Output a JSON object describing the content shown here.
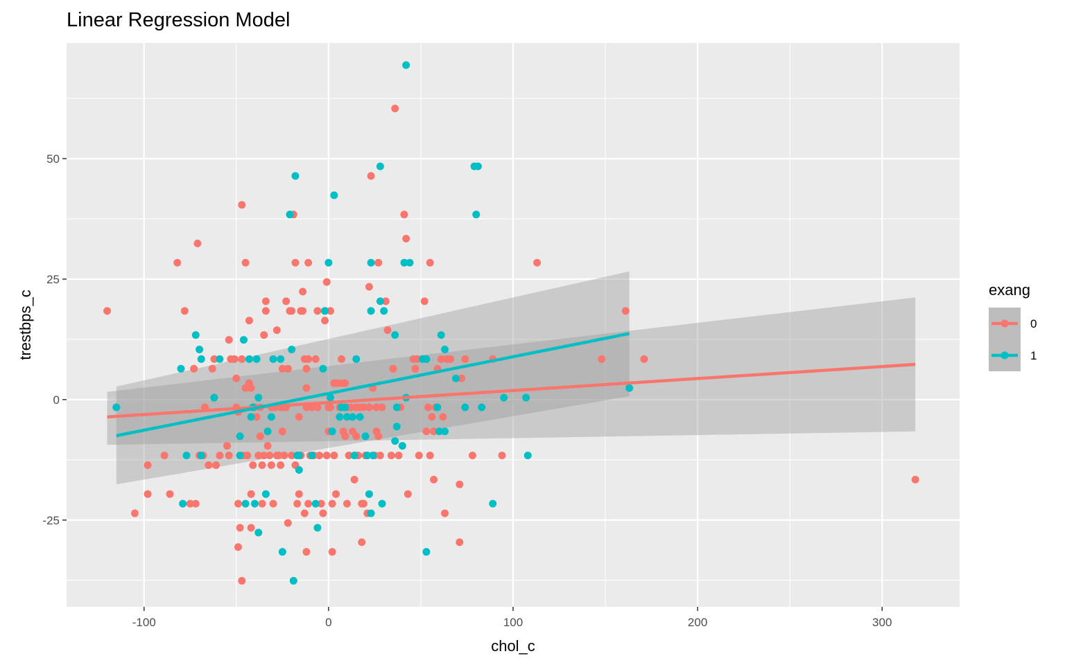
{
  "chart_data": {
    "type": "scatter",
    "title": "Linear Regression Model",
    "xlabel": "chol_c",
    "ylabel": "trestbps_c",
    "xlim": [
      -142,
      342
    ],
    "ylim": [
      -43,
      74
    ],
    "x_major_ticks": [
      -100,
      0,
      100,
      200,
      300
    ],
    "x_minor_ticks": [
      -50,
      50,
      150,
      250
    ],
    "y_major_ticks": [
      -25,
      0,
      25,
      50
    ],
    "y_minor_ticks": [
      -37.5,
      -12.5,
      12.5,
      37.5,
      62.5
    ],
    "x_tick_labels": [
      "-100",
      "0",
      "100",
      "200",
      "300"
    ],
    "y_tick_labels": [
      "-25",
      "0",
      "25",
      "50"
    ],
    "grid": true,
    "legend": {
      "title": "exang",
      "position": "right"
    },
    "series": [
      {
        "name": "0",
        "color": "#F8766D",
        "points": [
          [
            -120,
            18.4
          ],
          [
            -105,
            -23.6
          ],
          [
            -98,
            -13.6
          ],
          [
            -98,
            -19.6
          ],
          [
            -89,
            -11.6
          ],
          [
            -86,
            -19.6
          ],
          [
            -82,
            28.4
          ],
          [
            -78,
            18.4
          ],
          [
            -75,
            -21.6
          ],
          [
            -73,
            6.4
          ],
          [
            -72,
            -21.6
          ],
          [
            -71,
            32.4
          ],
          [
            -70,
            -11.6
          ],
          [
            -68,
            -11.6
          ],
          [
            -67,
            -1.6
          ],
          [
            -65,
            -13.6
          ],
          [
            -63,
            6.4
          ],
          [
            -62,
            8.4
          ],
          [
            -61,
            -13.6
          ],
          [
            -59,
            -11.6
          ],
          [
            -55,
            -9.6
          ],
          [
            -54,
            -11.6
          ],
          [
            -53,
            8.4
          ],
          [
            -54,
            12.4
          ],
          [
            -51,
            8.4
          ],
          [
            -50,
            4.4
          ],
          [
            -50,
            -1.6
          ],
          [
            -49,
            -2.6
          ],
          [
            -49,
            -21.6
          ],
          [
            -49,
            -30.6
          ],
          [
            -48,
            -26.6
          ],
          [
            -47,
            8.4
          ],
          [
            -47,
            40.4
          ],
          [
            -47,
            -37.6
          ],
          [
            -46,
            -11.6
          ],
          [
            -45,
            28.4
          ],
          [
            -45,
            2.4
          ],
          [
            -44,
            -11.6
          ],
          [
            -43,
            16.4
          ],
          [
            -43,
            3.4
          ],
          [
            -42,
            2.4
          ],
          [
            -42,
            -19.6
          ],
          [
            -42,
            -26.6
          ],
          [
            -41,
            -13.6
          ],
          [
            -40,
            -1.6
          ],
          [
            -39,
            -3.6
          ],
          [
            -38,
            -11.6
          ],
          [
            -37,
            -1.6
          ],
          [
            -37,
            -7.6
          ],
          [
            -36,
            -13.6
          ],
          [
            -36,
            -21.6
          ],
          [
            -35,
            -11.6
          ],
          [
            -35,
            13.4
          ],
          [
            -34,
            20.4
          ],
          [
            -34,
            18.4
          ],
          [
            -33,
            -9.6
          ],
          [
            -33,
            -6.6
          ],
          [
            -32,
            -11.6
          ],
          [
            -31,
            -1.6
          ],
          [
            -31,
            -13.6
          ],
          [
            -30,
            -21.6
          ],
          [
            -29,
            -1.6
          ],
          [
            -28,
            -11.6
          ],
          [
            -28,
            14.4
          ],
          [
            -27,
            -11.6
          ],
          [
            -26,
            -1.6
          ],
          [
            -26,
            -13.6
          ],
          [
            -25,
            -6.6
          ],
          [
            -25,
            6.4
          ],
          [
            -25,
            -1.6
          ],
          [
            -24,
            -11.6
          ],
          [
            -23,
            -1.6
          ],
          [
            -23,
            20.4
          ],
          [
            -22,
            6.4
          ],
          [
            -22,
            -25.6
          ],
          [
            -21,
            18.4
          ],
          [
            -20,
            -11.6
          ],
          [
            -20,
            18.4
          ],
          [
            -19,
            38.4
          ],
          [
            -18,
            28.4
          ],
          [
            -18,
            -13.6
          ],
          [
            -17,
            -21.6
          ],
          [
            -16,
            -19.6
          ],
          [
            -16,
            -3.6
          ],
          [
            -15,
            -11.6
          ],
          [
            -15,
            18.4
          ],
          [
            -14,
            22.4
          ],
          [
            -14,
            18.4
          ],
          [
            -13,
            8.4
          ],
          [
            -13,
            -23.6
          ],
          [
            -12,
            -1.6
          ],
          [
            -12,
            2.4
          ],
          [
            -12,
            -31.6
          ],
          [
            -12,
            6.4
          ],
          [
            -11,
            28.4
          ],
          [
            -11,
            8.4
          ],
          [
            -11,
            -21.6
          ],
          [
            -10,
            -11.6
          ],
          [
            -9,
            -1.6
          ],
          [
            -8,
            -11.6
          ],
          [
            -7,
            8.4
          ],
          [
            -6,
            18.4
          ],
          [
            -6,
            -1.6
          ],
          [
            -5,
            -11.6
          ],
          [
            -4,
            -21.6
          ],
          [
            -3,
            -23.6
          ],
          [
            -2,
            18.4
          ],
          [
            -2,
            16.4
          ],
          [
            -1,
            24.4
          ],
          [
            -1,
            -11.6
          ],
          [
            0,
            -6.6
          ],
          [
            0,
            -1.6
          ],
          [
            1,
            18.4
          ],
          [
            1,
            -1.6
          ],
          [
            2,
            -31.6
          ],
          [
            2,
            -21.6
          ],
          [
            3,
            -11.6
          ],
          [
            3,
            3.4
          ],
          [
            4,
            -19.6
          ],
          [
            5,
            3.4
          ],
          [
            6,
            -1.6
          ],
          [
            7,
            3.4
          ],
          [
            7,
            8.4
          ],
          [
            8,
            -6.6
          ],
          [
            9,
            -7.6
          ],
          [
            9,
            3.4
          ],
          [
            10,
            -1.6
          ],
          [
            10,
            -21.6
          ],
          [
            11,
            -11.6
          ],
          [
            12,
            -1.6
          ],
          [
            13,
            -6.6
          ],
          [
            14,
            -16.6
          ],
          [
            15,
            -1.6
          ],
          [
            15,
            -7.6
          ],
          [
            16,
            -11.6
          ],
          [
            17,
            -1.6
          ],
          [
            18,
            -21.6
          ],
          [
            18,
            -29.6
          ],
          [
            19,
            -21.6
          ],
          [
            19,
            -1.6
          ],
          [
            20,
            -11.6
          ],
          [
            21,
            -23.6
          ],
          [
            22,
            -1.6
          ],
          [
            22,
            23.4
          ],
          [
            23,
            46.4
          ],
          [
            24,
            2.4
          ],
          [
            25,
            -11.6
          ],
          [
            26,
            -1.6
          ],
          [
            26,
            -6.6
          ],
          [
            27,
            -7.6
          ],
          [
            27,
            28.4
          ],
          [
            28,
            -11.6
          ],
          [
            29,
            -1.6
          ],
          [
            31,
            20.4
          ],
          [
            32,
            14.4
          ],
          [
            34,
            -11.6
          ],
          [
            35,
            6.4
          ],
          [
            36,
            60.4
          ],
          [
            38,
            -11.6
          ],
          [
            39,
            -1.6
          ],
          [
            41,
            38.4
          ],
          [
            42,
            33.4
          ],
          [
            43,
            -19.6
          ],
          [
            46,
            8.4
          ],
          [
            47,
            6.4
          ],
          [
            48,
            8.4
          ],
          [
            49,
            -11.6
          ],
          [
            52,
            20.4
          ],
          [
            53,
            -6.6
          ],
          [
            54,
            -1.6
          ],
          [
            55,
            28.4
          ],
          [
            55,
            -11.6
          ],
          [
            56,
            -3.6
          ],
          [
            57,
            -6.6
          ],
          [
            57,
            -16.6
          ],
          [
            58,
            -1.6
          ],
          [
            59,
            6.4
          ],
          [
            61,
            8.4
          ],
          [
            62,
            -3.6
          ],
          [
            63,
            -23.6
          ],
          [
            64,
            8.4
          ],
          [
            66,
            8.4
          ],
          [
            71,
            -29.6
          ],
          [
            71,
            -17.6
          ],
          [
            72,
            4.4
          ],
          [
            74,
            8.4
          ],
          [
            78,
            -11.6
          ],
          [
            89,
            8.4
          ],
          [
            94,
            -11.6
          ],
          [
            113,
            28.4
          ],
          [
            148,
            8.4
          ],
          [
            161,
            18.4
          ],
          [
            171,
            8.4
          ],
          [
            318,
            -16.6
          ]
        ],
        "fit": {
          "x": [
            -120,
            318
          ],
          "y": [
            -3.6,
            7.3
          ],
          "band_lower": [
            -9.4,
            -6.6
          ],
          "band_upper": [
            1.6,
            21.2
          ]
        }
      },
      {
        "name": "1",
        "color": "#00BFC4",
        "points": [
          [
            -115,
            -1.6
          ],
          [
            -80,
            6.4
          ],
          [
            -79,
            -21.6
          ],
          [
            -77,
            -11.6
          ],
          [
            -72,
            13.4
          ],
          [
            -70,
            10.4
          ],
          [
            -69,
            8.4
          ],
          [
            -69,
            -11.6
          ],
          [
            -62,
            0.4
          ],
          [
            -59,
            8.4
          ],
          [
            -48,
            -11.6
          ],
          [
            -48,
            -7.6
          ],
          [
            -46,
            12.4
          ],
          [
            -45,
            -21.6
          ],
          [
            -43,
            8.4
          ],
          [
            -42,
            -3.6
          ],
          [
            -41,
            -1.6
          ],
          [
            -39,
            8.4
          ],
          [
            -40,
            -21.6
          ],
          [
            -38,
            -27.6
          ],
          [
            -38,
            0.4
          ],
          [
            -34,
            -19.6
          ],
          [
            -33,
            -6.6
          ],
          [
            -31,
            -3.6
          ],
          [
            -30,
            8.4
          ],
          [
            -26,
            8.4
          ],
          [
            -25,
            -31.6
          ],
          [
            -21,
            38.4
          ],
          [
            -20,
            10.4
          ],
          [
            -19,
            -37.6
          ],
          [
            -18,
            46.4
          ],
          [
            -17,
            -11.6
          ],
          [
            -16,
            -14.6
          ],
          [
            -16,
            -11.6
          ],
          [
            -9,
            -11.6
          ],
          [
            -7,
            -21.6
          ],
          [
            -6,
            -26.6
          ],
          [
            -3,
            6.4
          ],
          [
            -2,
            18.4
          ],
          [
            0,
            28.4
          ],
          [
            1,
            0.4
          ],
          [
            2,
            -6.6
          ],
          [
            3,
            42.4
          ],
          [
            6,
            -3.6
          ],
          [
            7,
            -1.6
          ],
          [
            9,
            -1.6
          ],
          [
            10,
            -3.6
          ],
          [
            13,
            -3.6
          ],
          [
            14,
            -11.6
          ],
          [
            15,
            8.4
          ],
          [
            17,
            -3.6
          ],
          [
            20,
            -7.6
          ],
          [
            21,
            -11.6
          ],
          [
            22,
            -19.6
          ],
          [
            23,
            28.4
          ],
          [
            23,
            18.4
          ],
          [
            23,
            -23.6
          ],
          [
            24,
            -11.6
          ],
          [
            28,
            48.4
          ],
          [
            28,
            20.4
          ],
          [
            29,
            -21.6
          ],
          [
            30,
            18.4
          ],
          [
            36,
            13.4
          ],
          [
            36,
            -8.6
          ],
          [
            37,
            -1.6
          ],
          [
            37,
            -5.6
          ],
          [
            40,
            -9.6
          ],
          [
            41,
            28.4
          ],
          [
            42,
            0.4
          ],
          [
            42,
            69.4
          ],
          [
            44,
            28.4
          ],
          [
            51,
            8.4
          ],
          [
            53,
            8.4
          ],
          [
            53,
            -31.6
          ],
          [
            59,
            -1.6
          ],
          [
            60,
            -6.6
          ],
          [
            61,
            13.4
          ],
          [
            63,
            -6.6
          ],
          [
            63,
            10.4
          ],
          [
            69,
            4.4
          ],
          [
            74,
            -1.6
          ],
          [
            79,
            48.4
          ],
          [
            81,
            48.4
          ],
          [
            80,
            38.4
          ],
          [
            83,
            -1.6
          ],
          [
            89,
            -21.6
          ],
          [
            95,
            0.4
          ],
          [
            107,
            0.4
          ],
          [
            108,
            -11.6
          ],
          [
            163,
            2.4
          ]
        ],
        "fit": {
          "x": [
            -115,
            163
          ],
          "y": [
            -7.5,
            13.7
          ],
          "band_lower": [
            -17.6,
            0.7
          ],
          "band_upper": [
            2.7,
            26.6
          ]
        }
      }
    ]
  }
}
